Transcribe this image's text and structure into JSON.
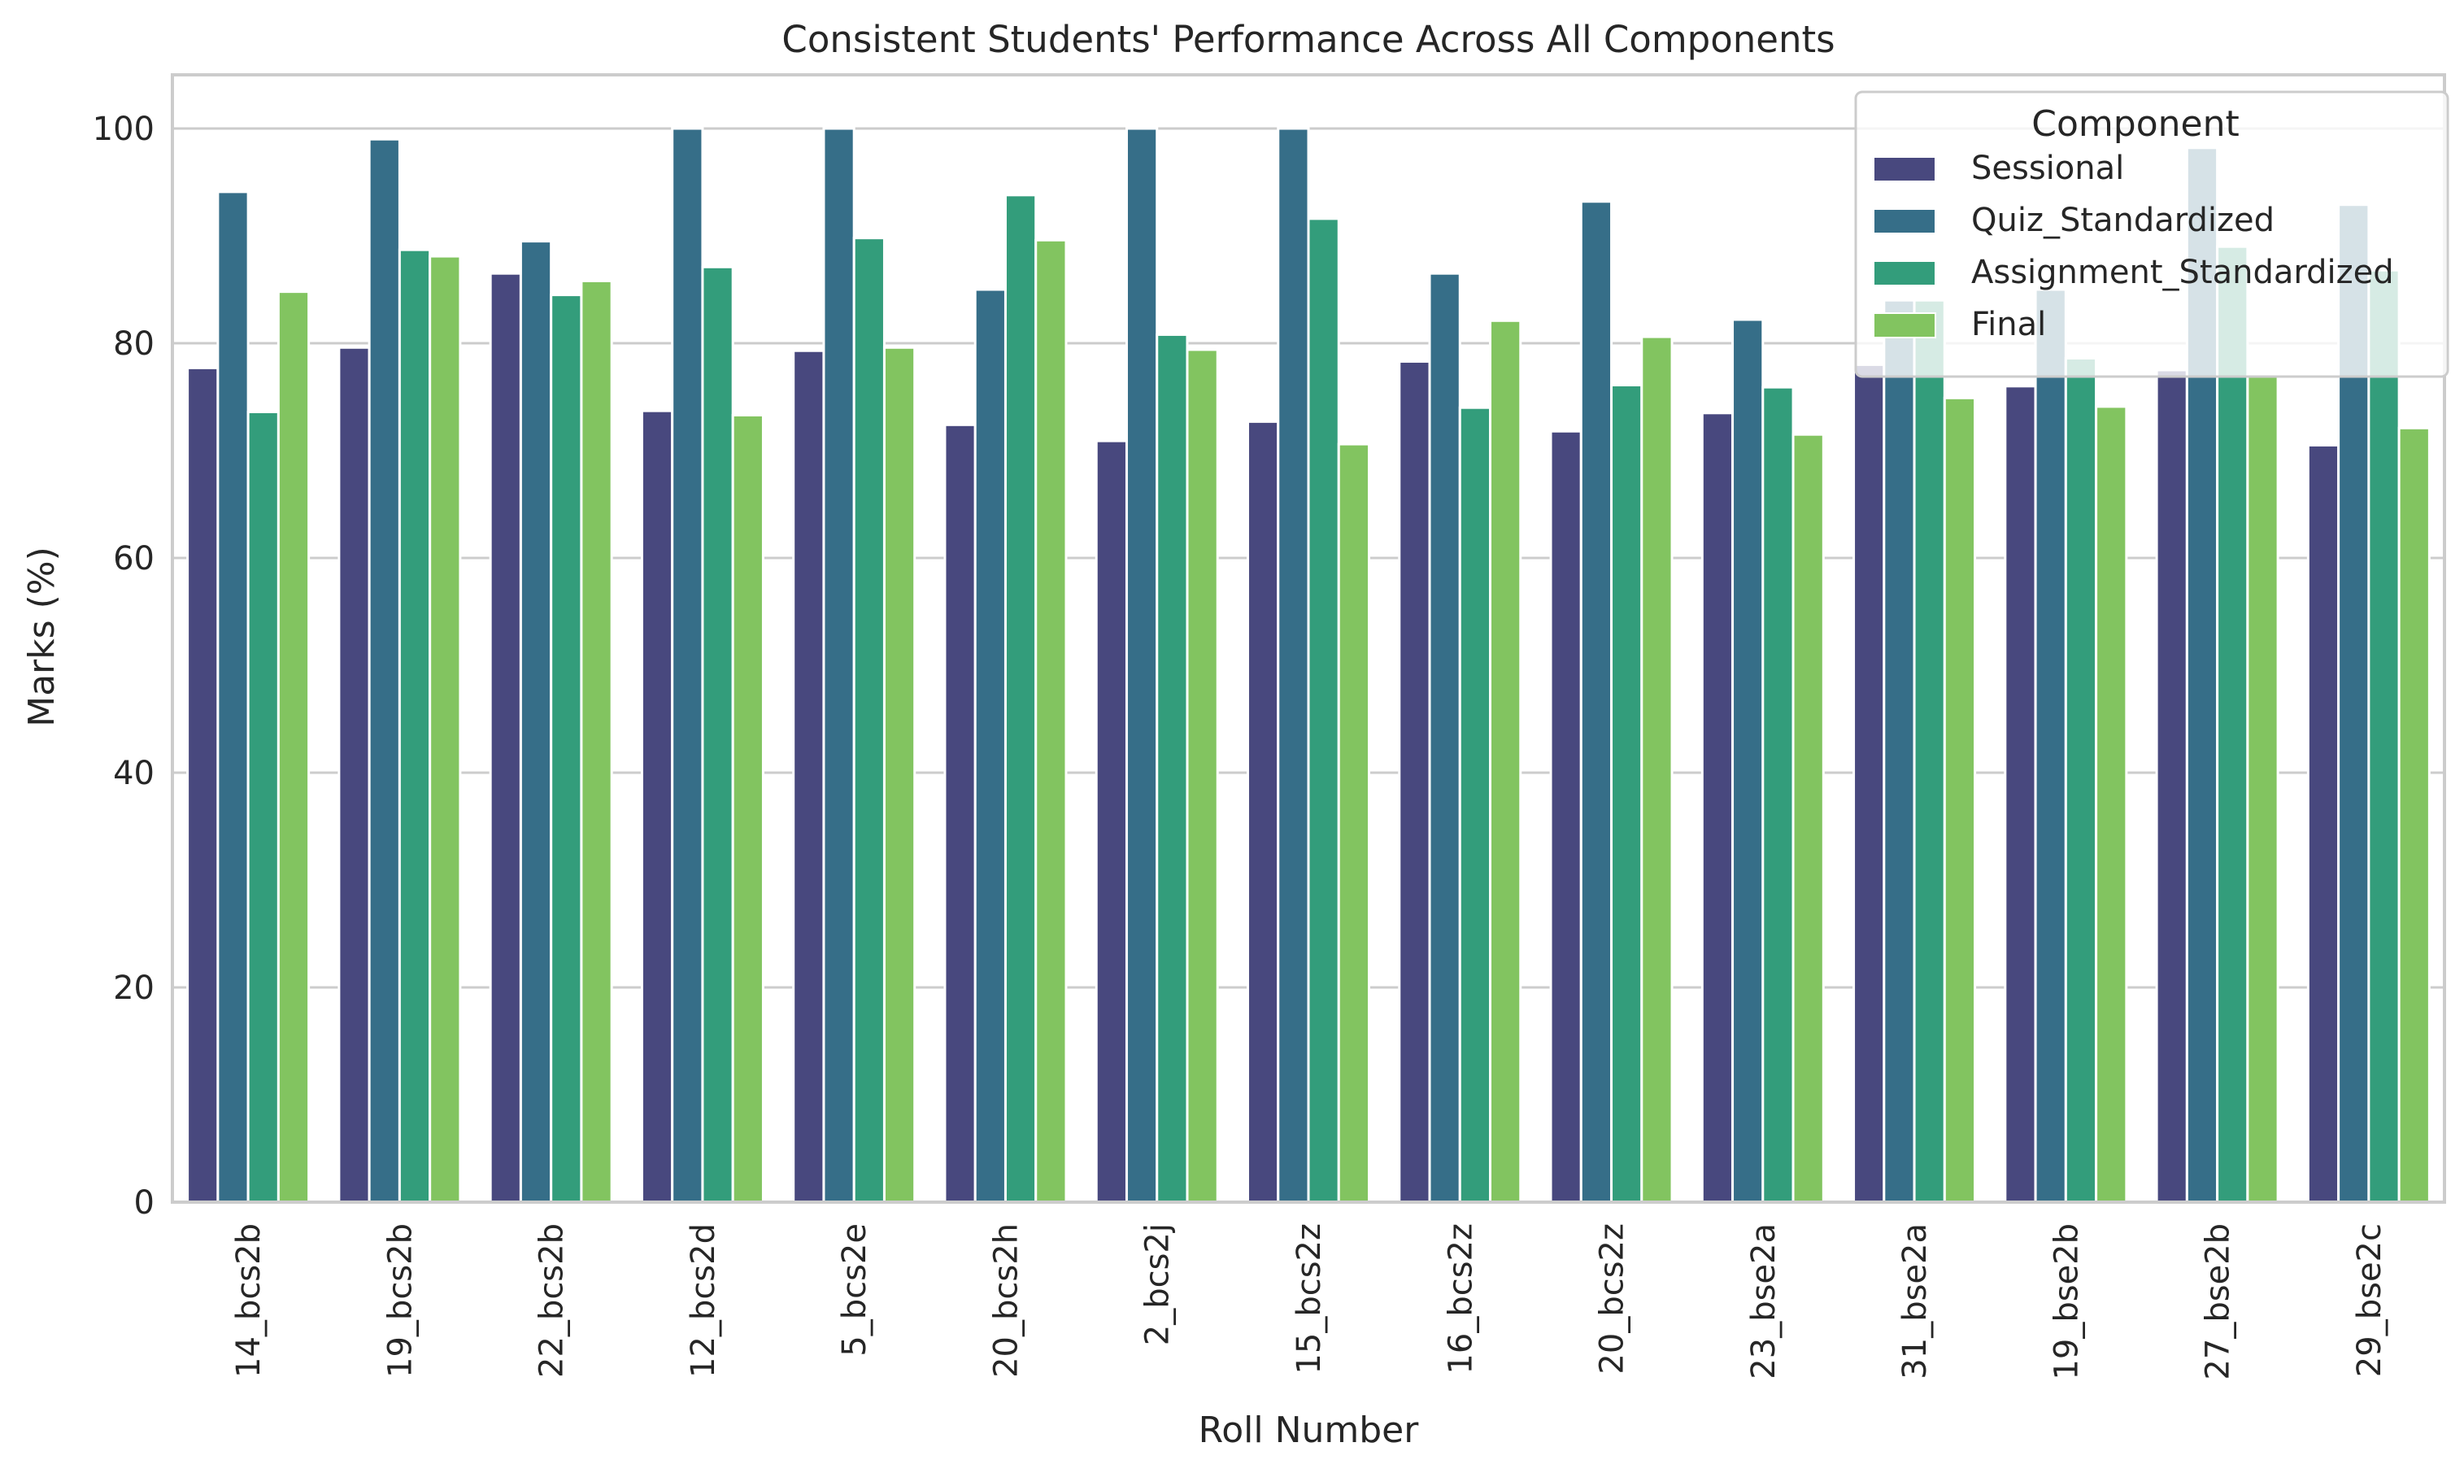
{
  "chart_data": {
    "type": "bar",
    "title": "Consistent Students' Performance Across All Components",
    "xlabel": "Roll Number",
    "ylabel": "Marks (%)",
    "ylim": [
      0,
      105
    ],
    "yticks": [
      0,
      20,
      40,
      60,
      80,
      100
    ],
    "grid": "horizontal",
    "legend": {
      "title": "Component",
      "placement": "top-right"
    },
    "categories": [
      "14_bcs2b",
      "19_bcs2b",
      "22_bcs2b",
      "12_bcs2d",
      "5_bcs2e",
      "20_bcs2h",
      "2_bcs2j",
      "15_bcs2z",
      "16_bcs2z",
      "20_bcs2z",
      "23_bse2a",
      "31_bse2a",
      "19_bse2b",
      "27_bse2b",
      "29_bse2c"
    ],
    "series": [
      {
        "name": "Sessional",
        "color": "#48487e",
        "values": [
          77.7,
          79.6,
          86.5,
          73.7,
          79.3,
          72.4,
          70.9,
          72.7,
          78.3,
          71.8,
          73.5,
          78.0,
          76.0,
          77.5,
          70.5
        ]
      },
      {
        "name": "Quiz_Standardized",
        "color": "#366e88",
        "values": [
          94.1,
          99.0,
          89.5,
          100.0,
          100.0,
          85.0,
          100.0,
          100.0,
          86.5,
          93.2,
          82.2,
          84.0,
          85.0,
          98.2,
          92.9
        ]
      },
      {
        "name": "Assignment_Standardized",
        "color": "#339d7b",
        "values": [
          73.6,
          88.7,
          84.5,
          87.1,
          89.8,
          93.8,
          80.8,
          91.6,
          74.0,
          76.1,
          75.9,
          84.0,
          78.6,
          89.0,
          86.8
        ]
      },
      {
        "name": "Final",
        "color": "#82c460",
        "values": [
          84.8,
          88.1,
          85.8,
          73.3,
          79.6,
          89.6,
          79.4,
          70.6,
          82.1,
          80.6,
          71.5,
          74.9,
          74.1,
          77.0,
          72.1
        ]
      }
    ]
  }
}
